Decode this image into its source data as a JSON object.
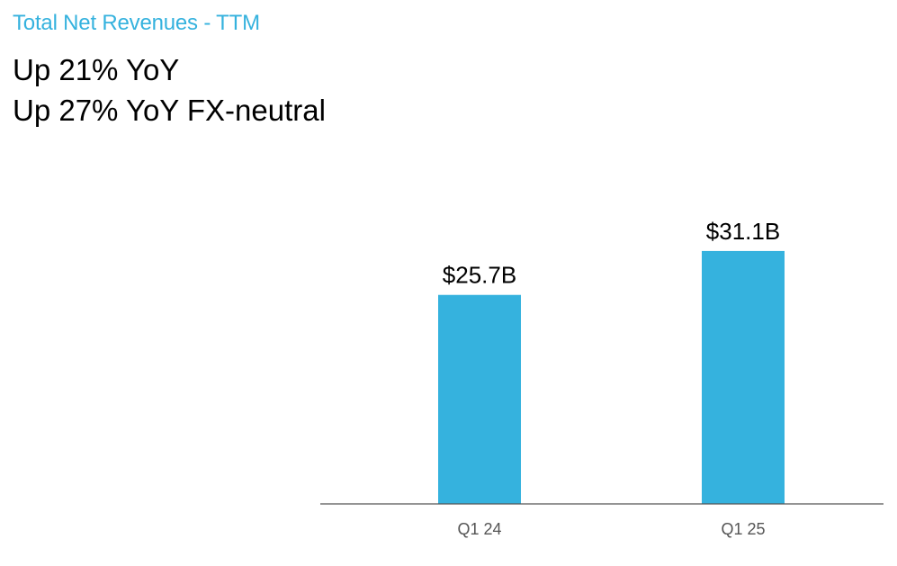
{
  "header": {
    "eyebrow": "Total Net Revenues - TTM",
    "headline_line1": "Up 21% YoY",
    "headline_line2": "Up 27% YoY FX-neutral"
  },
  "colors": {
    "accent": "#35b2de",
    "bar": "#35b2de",
    "axis": "#555555",
    "tick_text": "#555555"
  },
  "chart_data": {
    "type": "bar",
    "categories": [
      "Q1 24",
      "Q1 25"
    ],
    "values": [
      25.7,
      31.1
    ],
    "data_labels": [
      "$25.7B",
      "$31.1B"
    ],
    "title": "Total Net Revenues - TTM",
    "xlabel": "",
    "ylabel": "",
    "units": "$B",
    "ylim": [
      0,
      34.3
    ],
    "grid": false,
    "legend": "none"
  }
}
